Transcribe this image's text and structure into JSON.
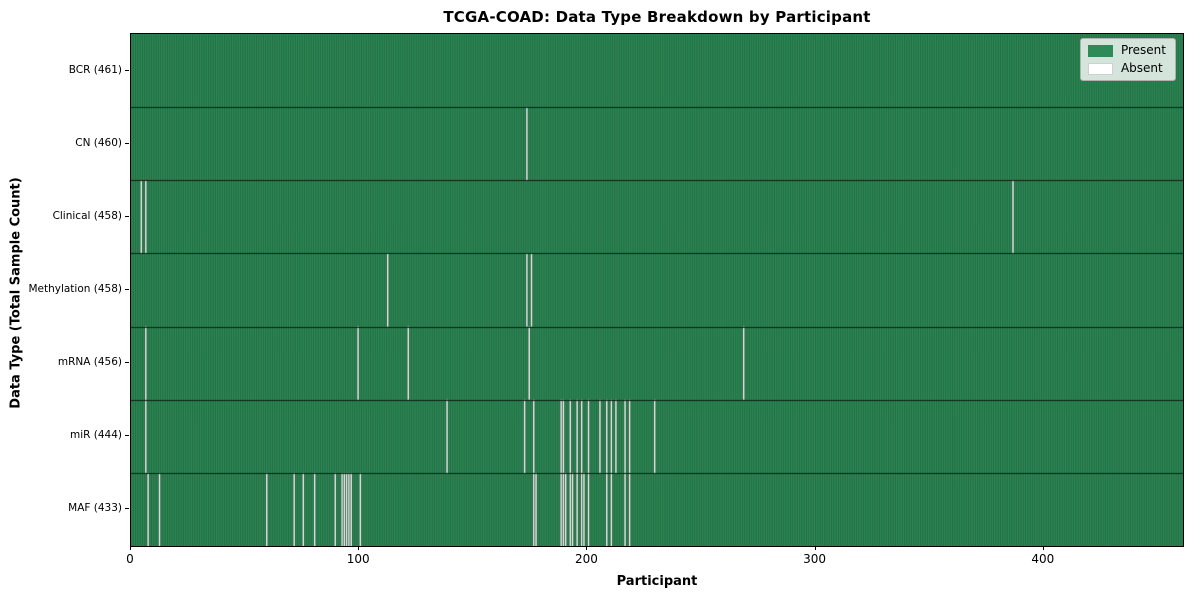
{
  "title": "TCGA-COAD: Data Type Breakdown by Participant",
  "x_axis_label": "Participant",
  "y_axis_label": "Data Type (Total Sample Count)",
  "legend": {
    "present_label": "Present",
    "absent_label": "Absent"
  },
  "colors": {
    "present": "#2e8b57",
    "absent": "#ffffff",
    "bar_edge": "rgba(12,42,24,0.5)",
    "row_separator": "#0d1f14",
    "legend_background": "rgba(255,255,255,0.8)"
  },
  "chart_data": {
    "type": "heatmap",
    "title": "TCGA-COAD: Data Type Breakdown by Participant",
    "xlabel": "Participant",
    "ylabel": "Data Type (Total Sample Count)",
    "legend_entries": [
      "Present",
      "Absent"
    ],
    "legend_position": "upper right",
    "x_ticks": [
      0,
      100,
      200,
      300,
      400
    ],
    "xlim": [
      0,
      461
    ],
    "total_participants": 461,
    "rows": [
      {
        "name": "BCR",
        "label": "BCR (461)",
        "present_count": 461,
        "absent_count": 0,
        "absent_positions": []
      },
      {
        "name": "CN",
        "label": "CN (460)",
        "present_count": 460,
        "absent_count": 1,
        "absent_positions": [
          173
        ]
      },
      {
        "name": "Clinical",
        "label": "Clinical (458)",
        "present_count": 458,
        "absent_count": 3,
        "absent_positions": [
          4,
          6,
          386
        ]
      },
      {
        "name": "Methylation",
        "label": "Methylation (458)",
        "present_count": 458,
        "absent_count": 3,
        "absent_positions": [
          112,
          173,
          175
        ]
      },
      {
        "name": "mRNA",
        "label": "mRNA (456)",
        "present_count": 456,
        "absent_count": 5,
        "absent_positions": [
          6,
          99,
          121,
          174,
          268
        ]
      },
      {
        "name": "miR",
        "label": "miR (444)",
        "present_count": 444,
        "absent_count": 17,
        "absent_positions": [
          6,
          138,
          172,
          176,
          188,
          189,
          192,
          195,
          197,
          200,
          205,
          208,
          210,
          212,
          216,
          218,
          229
        ]
      },
      {
        "name": "MAF",
        "label": "MAF (433)",
        "present_count": 433,
        "absent_count": 28,
        "absent_positions": [
          7,
          12,
          59,
          71,
          75,
          80,
          89,
          92,
          93,
          94,
          95,
          96,
          100,
          176,
          177,
          188,
          189,
          190,
          192,
          193,
          195,
          197,
          198,
          200,
          208,
          210,
          216,
          218
        ]
      }
    ]
  }
}
